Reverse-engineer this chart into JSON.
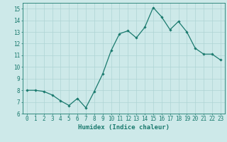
{
  "x": [
    0,
    1,
    2,
    3,
    4,
    5,
    6,
    7,
    8,
    9,
    10,
    11,
    12,
    13,
    14,
    15,
    16,
    17,
    18,
    19,
    20,
    21,
    22,
    23
  ],
  "y": [
    8.0,
    8.0,
    7.9,
    7.6,
    7.1,
    6.7,
    7.3,
    6.5,
    7.9,
    9.4,
    11.4,
    12.85,
    13.1,
    12.5,
    13.4,
    15.1,
    14.3,
    13.2,
    13.9,
    13.0,
    11.6,
    11.1,
    11.1,
    10.6
  ],
  "line_color": "#1a7a6e",
  "marker": "D",
  "marker_size": 1.8,
  "linewidth": 0.9,
  "bg_color": "#cde9e9",
  "grid_color": "#aed4d4",
  "xlabel": "Humidex (Indice chaleur)",
  "ylabel": "",
  "xlim": [
    -0.5,
    23.5
  ],
  "ylim": [
    6,
    15.5
  ],
  "yticks": [
    6,
    7,
    8,
    9,
    10,
    11,
    12,
    13,
    14,
    15
  ],
  "xticks": [
    0,
    1,
    2,
    3,
    4,
    5,
    6,
    7,
    8,
    9,
    10,
    11,
    12,
    13,
    14,
    15,
    16,
    17,
    18,
    19,
    20,
    21,
    22,
    23
  ],
  "tick_color": "#1a7a6e",
  "label_color": "#1a7a6e",
  "font_size": 5.5,
  "xlabel_fontsize": 6.5
}
